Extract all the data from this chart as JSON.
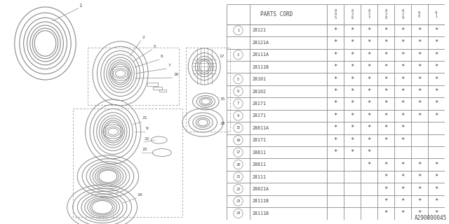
{
  "diagram_id": "A290000045",
  "bg_color": "#ffffff",
  "line_color": "#888888",
  "text_color": "#444444",
  "rows": [
    {
      "ref": "1",
      "part": "28121",
      "marks": [
        1,
        1,
        1,
        1,
        1,
        1,
        1
      ]
    },
    {
      "ref": "",
      "part": "28121A",
      "marks": [
        1,
        1,
        1,
        1,
        1,
        1,
        1
      ]
    },
    {
      "ref": "2",
      "part": "28111A",
      "marks": [
        1,
        1,
        1,
        1,
        1,
        1,
        1
      ]
    },
    {
      "ref": "",
      "part": "28111B",
      "marks": [
        1,
        1,
        1,
        1,
        1,
        1,
        1
      ]
    },
    {
      "ref": "5",
      "part": "28101",
      "marks": [
        1,
        1,
        1,
        1,
        1,
        1,
        1
      ]
    },
    {
      "ref": "6",
      "part": "28102",
      "marks": [
        1,
        1,
        1,
        1,
        1,
        1,
        1
      ]
    },
    {
      "ref": "7",
      "part": "28171",
      "marks": [
        1,
        1,
        1,
        1,
        1,
        1,
        1
      ]
    },
    {
      "ref": "9",
      "part": "28171",
      "marks": [
        1,
        1,
        1,
        1,
        1,
        1,
        1
      ]
    },
    {
      "ref": "15",
      "part": "28811A",
      "marks": [
        1,
        1,
        1,
        1,
        1,
        0,
        0
      ]
    },
    {
      "ref": "16",
      "part": "28171",
      "marks": [
        1,
        1,
        1,
        1,
        1,
        0,
        0
      ]
    },
    {
      "ref": "17",
      "part": "28811",
      "marks": [
        1,
        1,
        1,
        0,
        0,
        0,
        0
      ]
    },
    {
      "ref": "20",
      "part": "28811",
      "marks": [
        0,
        0,
        1,
        1,
        1,
        1,
        1
      ]
    },
    {
      "ref": "21",
      "part": "28111",
      "marks": [
        0,
        0,
        0,
        1,
        1,
        1,
        1
      ]
    },
    {
      "ref": "22",
      "part": "28821A",
      "marks": [
        0,
        0,
        0,
        1,
        1,
        1,
        1
      ]
    },
    {
      "ref": "23",
      "part": "28111B",
      "marks": [
        0,
        0,
        0,
        1,
        1,
        1,
        1
      ]
    },
    {
      "ref": "24",
      "part": "28111B",
      "marks": [
        0,
        0,
        0,
        1,
        1,
        1,
        1
      ]
    }
  ],
  "year_headers": [
    "8\n0\n5",
    "8\n2\n6",
    "8\n2\n7",
    "8\n2\n8",
    "8\n2\n9",
    "9\n0",
    "9\n1"
  ]
}
